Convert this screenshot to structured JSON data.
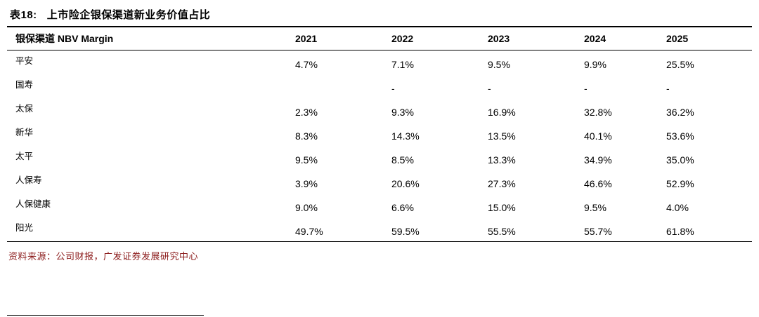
{
  "title": {
    "prefix": "表18:",
    "text": "上市险企银保渠道新业务价值占比"
  },
  "table": {
    "header": [
      "银保渠道 NBV Margin",
      "2021",
      "2022",
      "2023",
      "2024",
      "2025"
    ],
    "rows": [
      {
        "label": "平安",
        "values": [
          "4.7%",
          "7.1%",
          "9.5%",
          "9.9%",
          "25.5%"
        ]
      },
      {
        "label": "国寿",
        "values": [
          "",
          "-",
          "-",
          "-",
          "-"
        ]
      },
      {
        "label": "太保",
        "values": [
          "2.3%",
          "9.3%",
          "16.9%",
          "32.8%",
          "36.2%"
        ]
      },
      {
        "label": "新华",
        "values": [
          "8.3%",
          "14.3%",
          "13.5%",
          "40.1%",
          "53.6%"
        ]
      },
      {
        "label": "太平",
        "values": [
          "9.5%",
          "8.5%",
          "13.3%",
          "34.9%",
          "35.0%"
        ]
      },
      {
        "label": "人保寿",
        "values": [
          "3.9%",
          "20.6%",
          "27.3%",
          "46.6%",
          "52.9%"
        ]
      },
      {
        "label": "人保健康",
        "values": [
          "9.0%",
          "6.6%",
          "15.0%",
          "9.5%",
          "4.0%"
        ]
      },
      {
        "label": "阳光",
        "values": [
          "49.7%",
          "59.5%",
          "55.5%",
          "55.7%",
          "61.8%"
        ]
      }
    ]
  },
  "source": "资料来源：公司财报，广发证券发展研究中心",
  "colors": {
    "source_text": "#8b1a1a",
    "rule": "#000000"
  }
}
